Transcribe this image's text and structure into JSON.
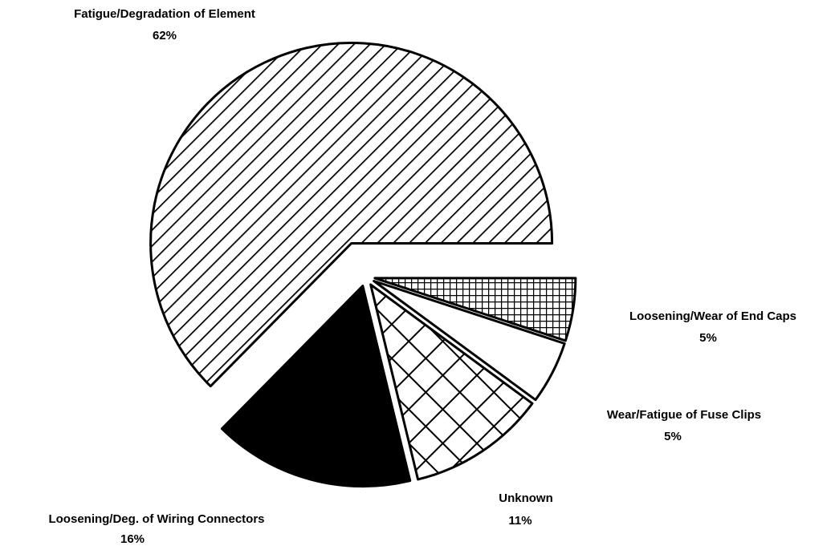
{
  "chart_data": {
    "type": "pie",
    "categories": [
      "Fatigue/Degradation of Element",
      "Loosening/Deg. of Wiring Connectors",
      "Unknown",
      "Wear/Fatigue of Fuse Clips",
      "Loosening/Wear of End Caps"
    ],
    "values": [
      62,
      16,
      11,
      5,
      5
    ],
    "value_labels": [
      "62%",
      "16%",
      "11%",
      "5%",
      "5%"
    ],
    "patterns": [
      "diagonal",
      "solid",
      "crosshatch",
      "none",
      "grid"
    ]
  }
}
